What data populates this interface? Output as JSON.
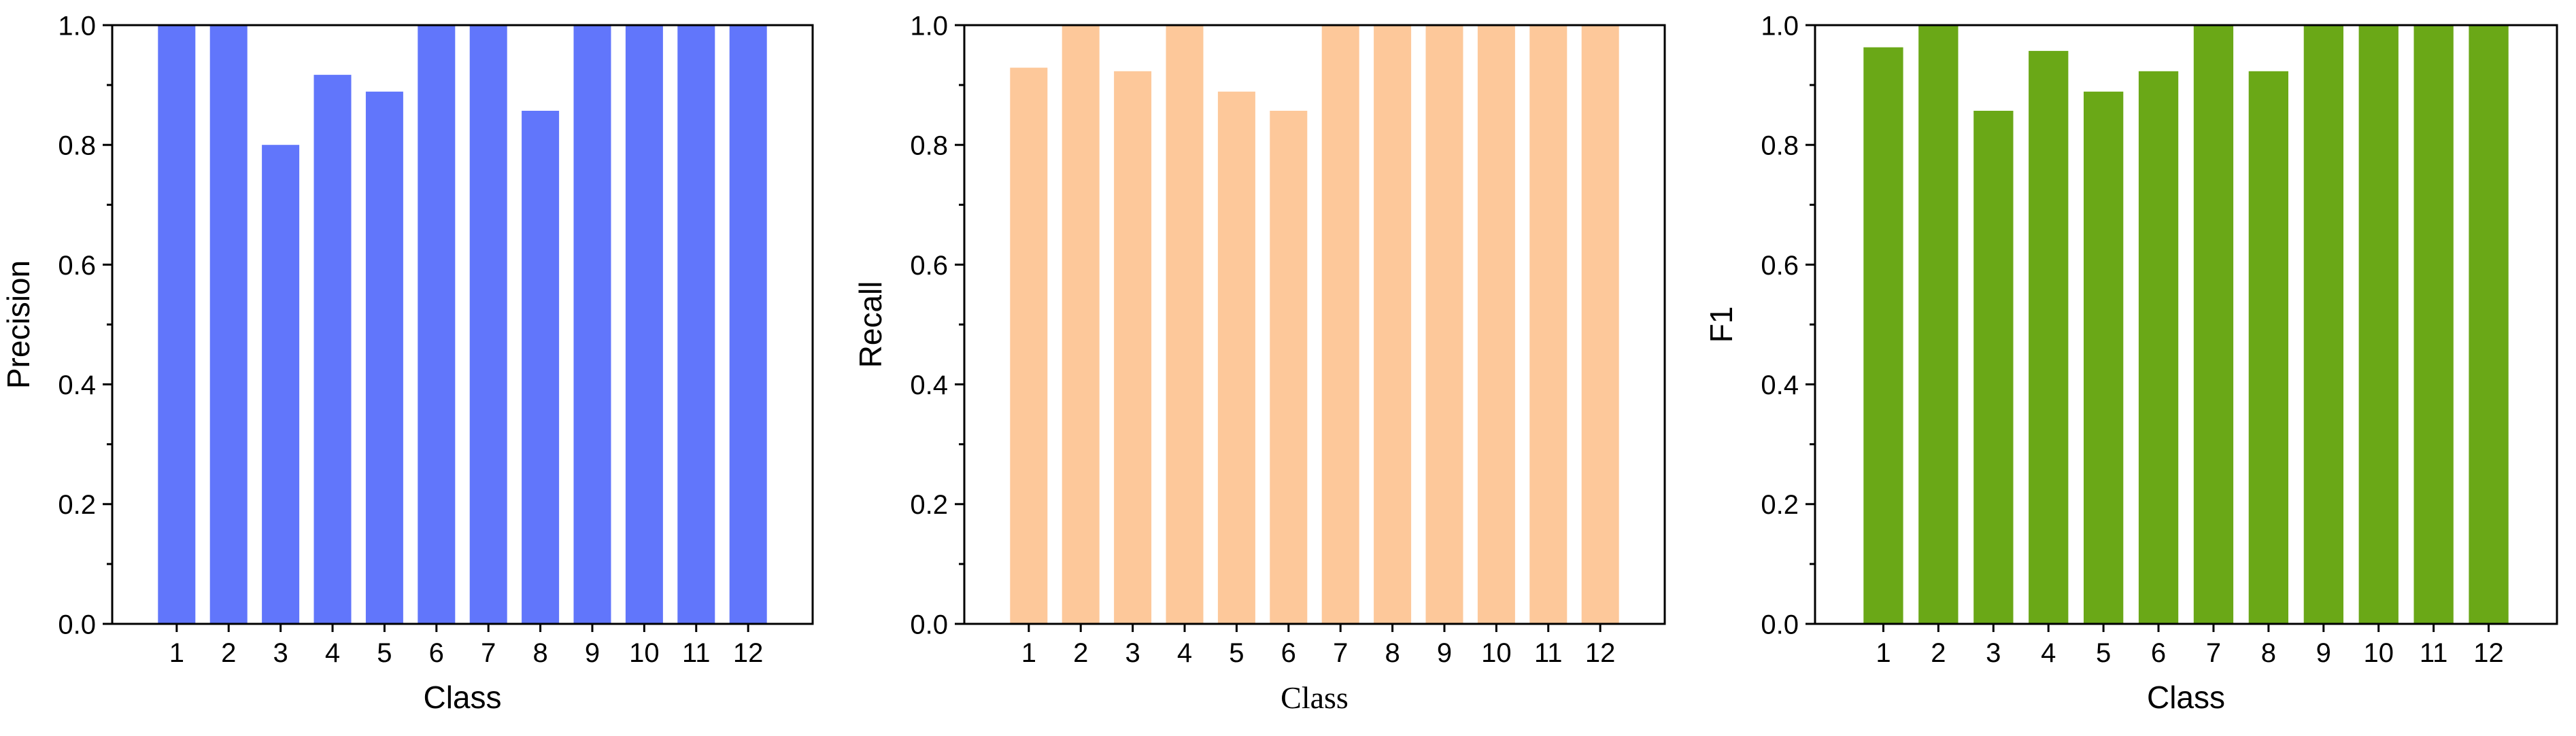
{
  "chart_data": [
    {
      "type": "bar",
      "categories": [
        "1",
        "2",
        "3",
        "4",
        "5",
        "6",
        "7",
        "8",
        "9",
        "10",
        "11",
        "12"
      ],
      "values": [
        1.0,
        1.0,
        0.8,
        0.917,
        0.889,
        1.0,
        1.0,
        0.857,
        1.0,
        1.0,
        1.0,
        1.0
      ],
      "xlabel": "Class",
      "ylabel": "Precision",
      "ylim": [
        0,
        1.0
      ],
      "yticks": [
        "0.0",
        "0.2",
        "0.4",
        "0.6",
        "0.8",
        "1.0"
      ],
      "color": "#6176fb",
      "grid": false
    },
    {
      "type": "bar",
      "categories": [
        "1",
        "2",
        "3",
        "4",
        "5",
        "6",
        "7",
        "8",
        "9",
        "10",
        "11",
        "12"
      ],
      "values": [
        0.929,
        1.0,
        0.923,
        1.0,
        0.889,
        0.857,
        1.0,
        1.0,
        1.0,
        1.0,
        1.0,
        1.0
      ],
      "xlabel": "Class",
      "ylabel": "Recall",
      "ylim": [
        0,
        1.0
      ],
      "yticks": [
        "0.0",
        "0.2",
        "0.4",
        "0.6",
        "0.8",
        "1.0"
      ],
      "color": "#fdc89a",
      "grid": false
    },
    {
      "type": "bar",
      "categories": [
        "1",
        "2",
        "3",
        "4",
        "5",
        "6",
        "7",
        "8",
        "9",
        "10",
        "11",
        "12"
      ],
      "values": [
        0.963,
        1.0,
        0.857,
        0.957,
        0.889,
        0.923,
        1.0,
        0.923,
        1.0,
        1.0,
        1.0,
        1.0
      ],
      "xlabel": "Class",
      "ylabel": "F1",
      "ylim": [
        0,
        1.0
      ],
      "yticks": [
        "0.0",
        "0.2",
        "0.4",
        "0.6",
        "0.8",
        "1.0"
      ],
      "color": "#6aa817",
      "grid": false
    }
  ]
}
